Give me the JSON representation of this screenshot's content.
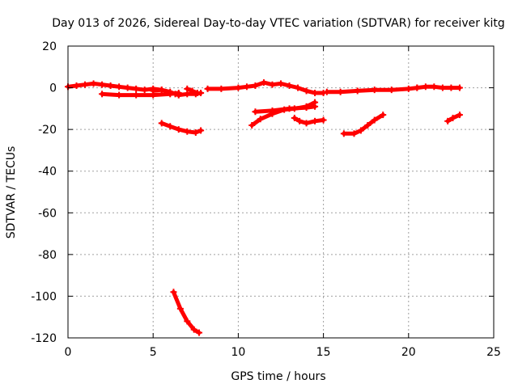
{
  "chart_data": {
    "type": "scatter",
    "title": "Day 013 of 2026, Sidereal Day-to-day VTEC variation (SDTVAR) for receiver kitg",
    "xlabel": "GPS time / hours",
    "ylabel": "SDTVAR / TECUs",
    "xlim": [
      0,
      25
    ],
    "ylim": [
      -120,
      20
    ],
    "xticks": [
      0,
      5,
      10,
      15,
      20,
      25
    ],
    "yticks": [
      20,
      0,
      -20,
      -40,
      -60,
      -80,
      -100,
      -120
    ],
    "xtick_labels": [
      "0",
      "5",
      "10",
      "15",
      "20",
      "25"
    ],
    "ytick_labels": [
      "20",
      "0",
      "-20",
      "-40",
      "-60",
      "-80",
      "-100",
      "-120"
    ],
    "grid": true,
    "legend": "none",
    "color": "#ff0000",
    "series": [
      {
        "x": [
          0.0,
          0.5,
          1.0,
          1.5,
          2.0,
          2.5,
          3.0,
          3.5,
          4.0,
          4.5,
          5.0,
          5.5
        ],
        "y": [
          0.5,
          1.0,
          1.5,
          2.0,
          1.5,
          1.0,
          0.5,
          0.0,
          -0.5,
          -1.0,
          -0.5,
          -1.0
        ]
      },
      {
        "x": [
          2.0,
          3.0,
          4.0,
          5.0,
          6.0,
          6.5
        ],
        "y": [
          -3.0,
          -3.5,
          -3.5,
          -3.5,
          -3.0,
          -2.5
        ]
      },
      {
        "x": [
          5.0,
          5.5,
          6.0,
          6.3,
          6.5
        ],
        "y": [
          -1.5,
          -1.0,
          -2.0,
          -3.0,
          -3.5
        ]
      },
      {
        "x": [
          6.5,
          7.0,
          7.5,
          7.8
        ],
        "y": [
          -3.5,
          -3.0,
          -3.0,
          -2.5
        ]
      },
      {
        "x": [
          7.0,
          7.3,
          7.6
        ],
        "y": [
          -0.5,
          -1.5,
          -2.5
        ]
      },
      {
        "x": [
          5.5,
          6.0,
          6.5,
          7.0,
          7.5,
          7.8
        ],
        "y": [
          -17.0,
          -18.5,
          -20.0,
          -21.0,
          -21.5,
          -20.5
        ]
      },
      {
        "x": [
          6.2,
          6.6,
          7.0,
          7.4,
          7.7
        ],
        "y": [
          -98.0,
          -106.0,
          -112.0,
          -116.0,
          -117.5
        ]
      },
      {
        "x": [
          8.2,
          9.0,
          10.0,
          10.5,
          11.0,
          11.5,
          12.0,
          12.5,
          13.0,
          13.5,
          14.0,
          14.5,
          15.0
        ],
        "y": [
          -0.5,
          -0.5,
          0.0,
          0.5,
          1.0,
          2.5,
          1.5,
          2.0,
          1.0,
          0.0,
          -1.5,
          -2.5,
          -2.5
        ]
      },
      {
        "x": [
          10.8,
          11.3,
          12.0,
          12.7,
          13.3,
          14.0,
          14.5
        ],
        "y": [
          -18.0,
          -15.0,
          -12.5,
          -10.5,
          -10.0,
          -9.0,
          -7.0
        ]
      },
      {
        "x": [
          11.0,
          12.0,
          13.0,
          14.0,
          14.5
        ],
        "y": [
          -11.5,
          -11.0,
          -10.0,
          -9.5,
          -9.0
        ]
      },
      {
        "x": [
          13.3,
          13.6,
          14.0,
          14.5,
          15.0
        ],
        "y": [
          -14.5,
          -16.0,
          -17.0,
          -16.0,
          -15.5
        ]
      },
      {
        "x": [
          15.2,
          16.0,
          17.0,
          18.0,
          19.0,
          20.0,
          20.5
        ],
        "y": [
          -2.0,
          -2.0,
          -1.5,
          -1.0,
          -1.0,
          -0.5,
          0.0
        ]
      },
      {
        "x": [
          20.5,
          21.0,
          21.5,
          22.0,
          22.5,
          23.0
        ],
        "y": [
          0.0,
          0.5,
          0.5,
          0.0,
          0.0,
          0.0
        ]
      },
      {
        "x": [
          16.2,
          16.8,
          17.2,
          17.6,
          18.0,
          18.5
        ],
        "y": [
          -22.0,
          -22.0,
          -20.5,
          -18.0,
          -15.5,
          -13.0
        ]
      },
      {
        "x": [
          22.3,
          22.6,
          23.0
        ],
        "y": [
          -16.0,
          -14.5,
          -13.0
        ]
      }
    ]
  }
}
